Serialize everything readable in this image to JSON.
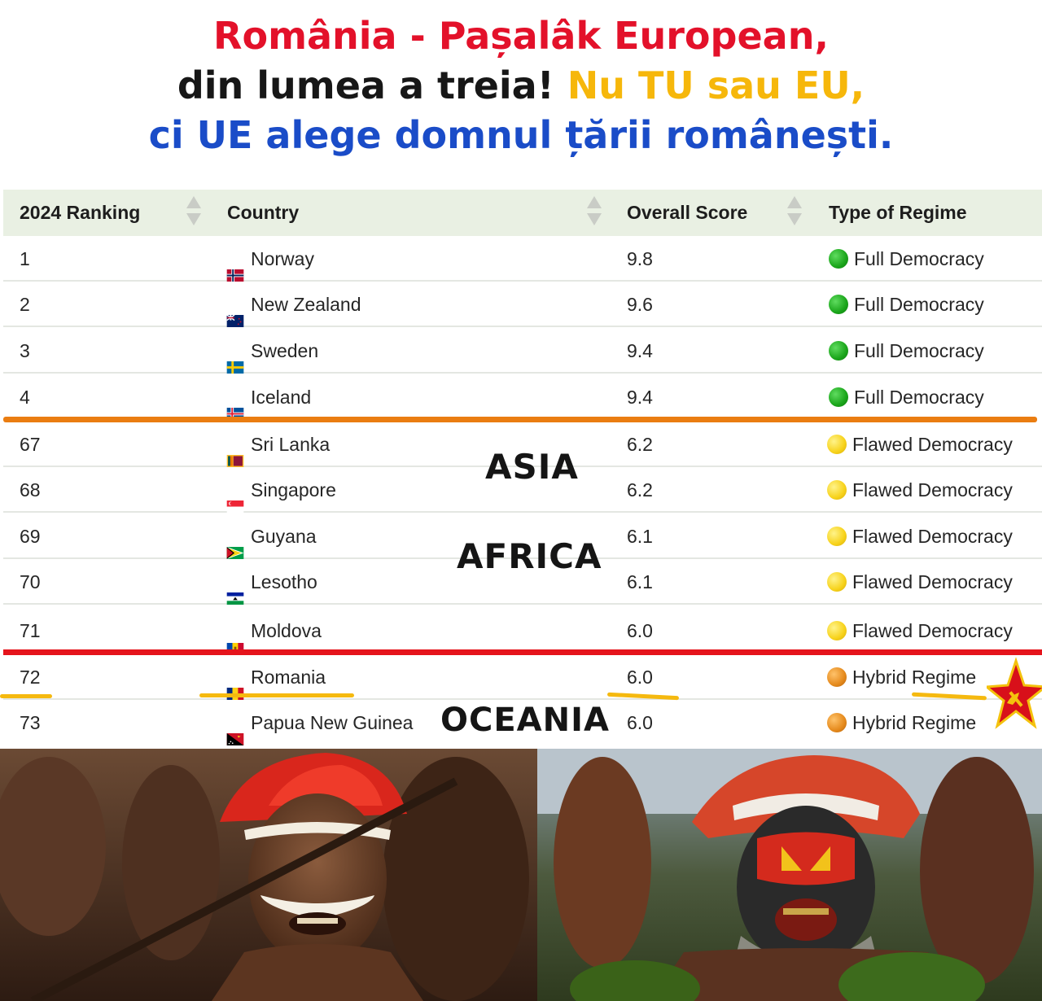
{
  "title": {
    "line1": "România - Pașalâk European,",
    "line2_black": "din lumea a treia! ",
    "line2_yellow": "Nu TU sau EU,",
    "line3": "ci UE alege domnul țării românești."
  },
  "table": {
    "headers": {
      "rank": "2024 Ranking",
      "country": "Country",
      "score": "Overall Score",
      "regime": "Type of Regime"
    },
    "rows": [
      {
        "rank": "1",
        "country": "Norway",
        "score": "9.8",
        "regime": "Full Democracy"
      },
      {
        "rank": "2",
        "country": "New Zealand",
        "score": "9.6",
        "regime": "Full Democracy"
      },
      {
        "rank": "3",
        "country": "Sweden",
        "score": "9.4",
        "regime": "Full Democracy"
      },
      {
        "rank": "4",
        "country": "Iceland",
        "score": "9.4",
        "regime": "Full Democracy"
      },
      {
        "rank": "67",
        "country": "Sri Lanka",
        "score": "6.2",
        "regime": "Flawed Democracy"
      },
      {
        "rank": "68",
        "country": "Singapore",
        "score": "6.2",
        "regime": "Flawed Democracy"
      },
      {
        "rank": "69",
        "country": "Guyana",
        "score": "6.1",
        "regime": "Flawed Democracy"
      },
      {
        "rank": "70",
        "country": "Lesotho",
        "score": "6.1",
        "regime": "Flawed Democracy"
      },
      {
        "rank": "71",
        "country": "Moldova",
        "score": "6.0",
        "regime": "Flawed Democracy"
      },
      {
        "rank": "72",
        "country": "Romania",
        "score": "6.0",
        "regime": "Hybrid Regime"
      },
      {
        "rank": "73",
        "country": "Papua New Guinea",
        "score": "6.0",
        "regime": "Hybrid Regime"
      }
    ]
  },
  "overlay": {
    "asia": "ASIA",
    "africa": "AFRICA",
    "oceania": "OCEANIA"
  },
  "colors": {
    "title_red": "#e3112a",
    "title_yellow": "#f6b70b",
    "title_blue": "#1a4cc8",
    "header_bg": "#e9f0e3",
    "full_democracy": "#1aa51a",
    "flawed_democracy": "#f7d21a",
    "hybrid_regime": "#e58a1c",
    "separator_orange": "#ea7d11",
    "separator_red": "#e5141c",
    "underline": "#f5b90f"
  },
  "icons": {
    "sort": "sort-arrows-icon",
    "star": "soviet-star-hammer-sickle-icon"
  }
}
